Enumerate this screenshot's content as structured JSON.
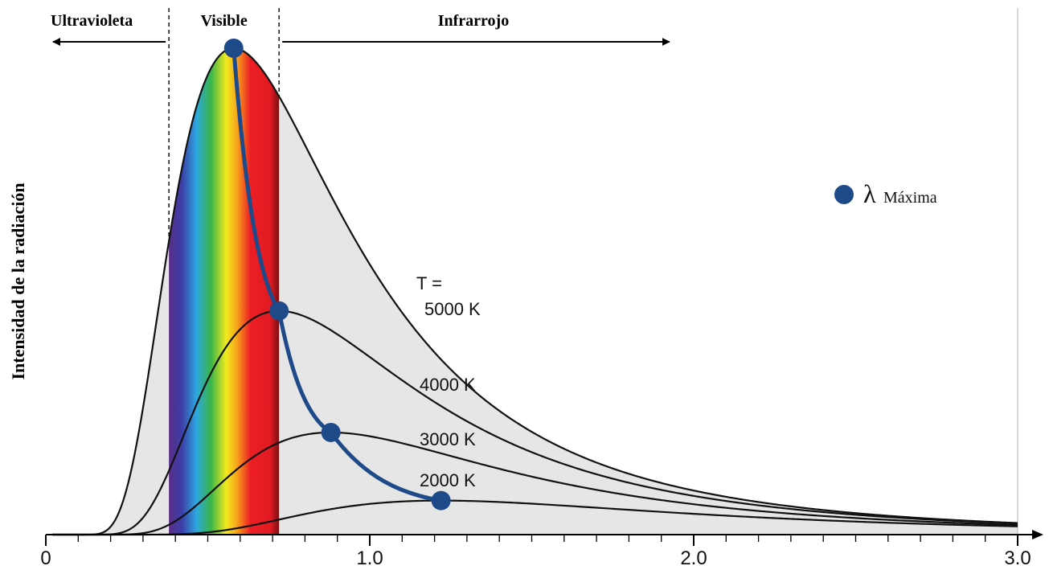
{
  "chart_data": {
    "type": "line",
    "xlabel": "",
    "ylabel": "Intensidad de la radiación",
    "xlim": [
      0,
      3.0
    ],
    "x_ticks": [
      "0",
      "1.0",
      "2.0",
      "3.0"
    ],
    "regions": [
      {
        "label": "Ultravioleta",
        "x_range": [
          0,
          0.38
        ]
      },
      {
        "label": "Visible",
        "x_range": [
          0.38,
          0.72
        ]
      },
      {
        "label": "Infrarrojo",
        "x_range": [
          0.72,
          1.92
        ]
      }
    ],
    "temperature_prefix": "T =",
    "series": [
      {
        "name": "5000 K",
        "temperature": 5000,
        "peak_x": 0.58,
        "peak_y": 1.0
      },
      {
        "name": "4000 K",
        "temperature": 4000,
        "peak_x": 0.72,
        "peak_y": 0.46
      },
      {
        "name": "3000 K",
        "temperature": 3000,
        "peak_x": 0.88,
        "peak_y": 0.21
      },
      {
        "name": "2000 K",
        "temperature": 2000,
        "peak_x": 1.22,
        "peak_y": 0.07
      }
    ],
    "peak_line": {
      "name": "λ Máxima",
      "points": [
        [
          0.58,
          1.0
        ],
        [
          0.72,
          0.46
        ],
        [
          0.88,
          0.21
        ],
        [
          1.22,
          0.07
        ]
      ]
    },
    "legend": {
      "symbol": "λ",
      "text": "Máxima",
      "position": "right"
    },
    "colors": {
      "curve": "#111111",
      "peak": "#1f4a8a",
      "fill": "#e6e6e6"
    }
  }
}
